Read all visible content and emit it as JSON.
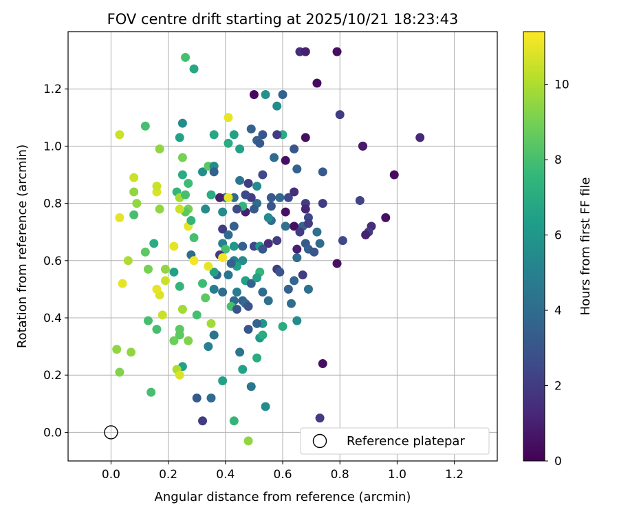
{
  "chart_data": {
    "type": "scatter",
    "title": "FOV centre drift starting at 2025/10/21 18:23:43",
    "xlabel": "Angular distance from reference (arcmin)",
    "ylabel": "Rotation from reference (arcmin)",
    "xlim": [
      -0.15,
      1.35
    ],
    "ylim": [
      -0.1,
      1.4
    ],
    "x_ticks": [
      0.0,
      0.2,
      0.4,
      0.6,
      0.8,
      1.0,
      1.2
    ],
    "y_ticks": [
      0.0,
      0.2,
      0.4,
      0.6,
      0.8,
      1.0,
      1.2
    ],
    "x_tick_labels": [
      "0.0",
      "0.2",
      "0.4",
      "0.6",
      "0.8",
      "1.0",
      "1.2"
    ],
    "y_tick_labels": [
      "0.0",
      "0.2",
      "0.4",
      "0.6",
      "0.8",
      "1.0",
      "1.2"
    ],
    "grid": true,
    "colorbar": {
      "label": "Hours from first FF file",
      "colormap": "viridis",
      "range": [
        0,
        11.4
      ],
      "ticks": [
        0,
        2,
        4,
        6,
        8,
        10
      ],
      "tick_labels": [
        "0",
        "2",
        "4",
        "6",
        "8",
        "10"
      ]
    },
    "reference": {
      "x": 0.0,
      "y": 0.0,
      "label": "Reference platepar"
    },
    "legend": {
      "position": "bottom-right",
      "entries": [
        "Reference platepar"
      ]
    },
    "points": [
      [
        0.66,
        1.33,
        1.5
      ],
      [
        0.68,
        1.33,
        1.0
      ],
      [
        0.79,
        1.33,
        0.5
      ],
      [
        0.72,
        1.22,
        0.3
      ],
      [
        0.5,
        1.18,
        0.3
      ],
      [
        0.6,
        1.18,
        3.5
      ],
      [
        0.54,
        1.18,
        5.8
      ],
      [
        0.8,
        1.11,
        2.0
      ],
      [
        0.58,
        1.14,
        5.5
      ],
      [
        0.49,
        1.06,
        3.5
      ],
      [
        0.6,
        1.04,
        7.0
      ],
      [
        0.58,
        1.04,
        2.0
      ],
      [
        0.53,
        1.04,
        3.0
      ],
      [
        0.51,
        1.02,
        3.5
      ],
      [
        0.52,
        1.01,
        3.2
      ],
      [
        0.68,
        1.03,
        0.5
      ],
      [
        0.88,
        1.0,
        0.3
      ],
      [
        0.88,
        1.0,
        0.8
      ],
      [
        1.08,
        1.03,
        1.3
      ],
      [
        0.64,
        0.99,
        3.0
      ],
      [
        0.61,
        0.95,
        0.5
      ],
      [
        0.57,
        0.96,
        4.0
      ],
      [
        0.65,
        0.92,
        3.5
      ],
      [
        0.74,
        0.91,
        3.2
      ],
      [
        0.53,
        0.9,
        2.5
      ],
      [
        0.99,
        0.9,
        0.3
      ],
      [
        0.87,
        0.81,
        2.3
      ],
      [
        0.68,
        0.8,
        2.0
      ],
      [
        0.74,
        0.8,
        2.0
      ],
      [
        0.68,
        0.78,
        1.2
      ],
      [
        0.62,
        0.82,
        2.5
      ],
      [
        0.64,
        0.84,
        1.5
      ],
      [
        0.61,
        0.77,
        0.5
      ],
      [
        0.69,
        0.75,
        2.5
      ],
      [
        0.67,
        0.72,
        3.5
      ],
      [
        0.64,
        0.72,
        0.5
      ],
      [
        0.66,
        0.7,
        2.0
      ],
      [
        0.69,
        0.73,
        2.0
      ],
      [
        0.91,
        0.72,
        1.5
      ],
      [
        0.9,
        0.7,
        2.0
      ],
      [
        0.89,
        0.69,
        1.0
      ],
      [
        0.96,
        0.75,
        0.5
      ],
      [
        0.81,
        0.67,
        2.5
      ],
      [
        0.68,
        0.66,
        3.2
      ],
      [
        0.73,
        0.66,
        4.0
      ],
      [
        0.69,
        0.64,
        3.5
      ],
      [
        0.71,
        0.63,
        3.0
      ],
      [
        0.65,
        0.64,
        1.0
      ],
      [
        0.65,
        0.61,
        4.0
      ],
      [
        0.79,
        0.59,
        0.5
      ],
      [
        0.58,
        0.67,
        2.0
      ],
      [
        0.55,
        0.66,
        1.5
      ],
      [
        0.5,
        0.65,
        2.5
      ],
      [
        0.52,
        0.65,
        6.0
      ],
      [
        0.53,
        0.64,
        3.0
      ],
      [
        0.56,
        0.74,
        4.0
      ],
      [
        0.55,
        0.75,
        5.5
      ],
      [
        0.56,
        0.79,
        3.0
      ],
      [
        0.56,
        0.82,
        3.2
      ],
      [
        0.51,
        0.8,
        4.0
      ],
      [
        0.5,
        0.78,
        3.2
      ],
      [
        0.49,
        0.82,
        2.0
      ],
      [
        0.51,
        0.86,
        5.5
      ],
      [
        0.48,
        0.87,
        2.0
      ],
      [
        0.47,
        0.83,
        2.5
      ],
      [
        0.45,
        0.88,
        4.5
      ],
      [
        0.43,
        0.82,
        4.0
      ],
      [
        0.4,
        0.82,
        4.5
      ],
      [
        0.38,
        0.82,
        1.0
      ],
      [
        0.39,
        0.77,
        5.5
      ],
      [
        0.47,
        0.77,
        1.0
      ],
      [
        0.46,
        0.79,
        7.5
      ],
      [
        0.44,
        0.78,
        2.5
      ],
      [
        0.39,
        0.71,
        2.0
      ],
      [
        0.43,
        0.72,
        3.5
      ],
      [
        0.41,
        0.69,
        4.0
      ],
      [
        0.39,
        0.66,
        5.0
      ],
      [
        0.43,
        0.65,
        6.0
      ],
      [
        0.46,
        0.65,
        3.5
      ],
      [
        0.4,
        0.64,
        8.0
      ],
      [
        0.38,
        0.62,
        2.0
      ],
      [
        0.43,
        0.6,
        4.8
      ],
      [
        0.46,
        0.6,
        5.5
      ],
      [
        0.44,
        0.58,
        6.5
      ],
      [
        0.42,
        0.59,
        3.5
      ],
      [
        0.41,
        0.55,
        4.5
      ],
      [
        0.37,
        0.55,
        3.5
      ],
      [
        0.36,
        0.5,
        4.8
      ],
      [
        0.39,
        0.49,
        4.0
      ],
      [
        0.44,
        0.49,
        4.8
      ],
      [
        0.43,
        0.46,
        4.0
      ],
      [
        0.42,
        0.44,
        8.0
      ],
      [
        0.44,
        0.43,
        3.0
      ],
      [
        0.46,
        0.46,
        3.5
      ],
      [
        0.47,
        0.45,
        4.0
      ],
      [
        0.48,
        0.44,
        3.0
      ],
      [
        0.47,
        0.53,
        6.5
      ],
      [
        0.49,
        0.52,
        3.5
      ],
      [
        0.52,
        0.56,
        7.5
      ],
      [
        0.51,
        0.54,
        6.5
      ],
      [
        0.53,
        0.49,
        4.0
      ],
      [
        0.58,
        0.57,
        2.0
      ],
      [
        0.59,
        0.56,
        3.0
      ],
      [
        0.62,
        0.5,
        3.5
      ],
      [
        0.63,
        0.45,
        4.0
      ],
      [
        0.67,
        0.55,
        2.0
      ],
      [
        0.69,
        0.5,
        4.2
      ],
      [
        0.65,
        0.39,
        5.5
      ],
      [
        0.6,
        0.37,
        7.0
      ],
      [
        0.53,
        0.38,
        6.0
      ],
      [
        0.51,
        0.38,
        3.5
      ],
      [
        0.48,
        0.36,
        3.0
      ],
      [
        0.52,
        0.33,
        6.0
      ],
      [
        0.53,
        0.34,
        7.0
      ],
      [
        0.45,
        0.28,
        4.5
      ],
      [
        0.46,
        0.22,
        6.5
      ],
      [
        0.49,
        0.16,
        4.5
      ],
      [
        0.51,
        0.26,
        7.0
      ],
      [
        0.39,
        0.18,
        6.5
      ],
      [
        0.35,
        0.12,
        4.0
      ],
      [
        0.3,
        0.12,
        3.2
      ],
      [
        0.32,
        0.04,
        2.0
      ],
      [
        0.43,
        0.04,
        7.5
      ],
      [
        0.54,
        0.09,
        5.5
      ],
      [
        0.48,
        -0.03,
        9.5
      ],
      [
        0.73,
        0.05,
        2.0
      ],
      [
        0.74,
        0.24,
        0.5
      ],
      [
        0.36,
        0.34,
        9.5
      ],
      [
        0.36,
        0.34,
        4.5
      ],
      [
        0.34,
        0.3,
        5.0
      ],
      [
        0.35,
        0.38,
        9.8
      ],
      [
        0.33,
        0.47,
        8.5
      ],
      [
        0.3,
        0.41,
        8.0
      ],
      [
        0.32,
        0.52,
        7.8
      ],
      [
        0.28,
        0.62,
        4.0
      ],
      [
        0.29,
        0.6,
        11.2
      ],
      [
        0.29,
        0.68,
        8.0
      ],
      [
        0.27,
        0.72,
        11.0
      ],
      [
        0.28,
        0.74,
        7.5
      ],
      [
        0.27,
        0.78,
        9.0
      ],
      [
        0.26,
        0.77,
        8.5
      ],
      [
        0.24,
        0.78,
        10.5
      ],
      [
        0.23,
        0.84,
        7.5
      ],
      [
        0.24,
        0.82,
        9.8
      ],
      [
        0.26,
        0.83,
        8.0
      ],
      [
        0.27,
        0.87,
        7.8
      ],
      [
        0.25,
        0.9,
        7.0
      ],
      [
        0.25,
        0.96,
        9.0
      ],
      [
        0.24,
        1.03,
        6.5
      ],
      [
        0.25,
        1.08,
        5.5
      ],
      [
        0.26,
        1.31,
        8.0
      ],
      [
        0.29,
        1.27,
        6.8
      ],
      [
        0.32,
        0.91,
        5.5
      ],
      [
        0.34,
        0.93,
        8.5
      ],
      [
        0.36,
        0.93,
        5.5
      ],
      [
        0.36,
        0.91,
        3.5
      ],
      [
        0.36,
        1.04,
        6.8
      ],
      [
        0.41,
        1.01,
        7.0
      ],
      [
        0.41,
        1.1,
        11.0
      ],
      [
        0.43,
        1.04,
        6.5
      ],
      [
        0.45,
        0.99,
        6.5
      ],
      [
        0.35,
        0.83,
        7.0
      ],
      [
        0.33,
        0.78,
        5.5
      ],
      [
        0.41,
        0.82,
        11.0
      ],
      [
        0.36,
        0.56,
        6.5
      ],
      [
        0.34,
        0.58,
        11.0
      ],
      [
        0.39,
        0.61,
        11.2
      ],
      [
        0.25,
        0.43,
        9.8
      ],
      [
        0.24,
        0.36,
        8.5
      ],
      [
        0.25,
        0.23,
        6.5
      ],
      [
        0.23,
        0.22,
        10.0
      ],
      [
        0.24,
        0.2,
        10.8
      ],
      [
        0.24,
        0.34,
        8.5
      ],
      [
        0.22,
        0.32,
        8.8
      ],
      [
        0.27,
        0.32,
        9.2
      ],
      [
        0.24,
        0.51,
        7.5
      ],
      [
        0.22,
        0.56,
        6.5
      ],
      [
        0.22,
        0.65,
        11.0
      ],
      [
        0.19,
        0.57,
        9.5
      ],
      [
        0.19,
        0.53,
        10.5
      ],
      [
        0.17,
        0.48,
        10.8
      ],
      [
        0.18,
        0.41,
        10.5
      ],
      [
        0.16,
        0.5,
        11.0
      ],
      [
        0.16,
        0.36,
        8.0
      ],
      [
        0.14,
        0.14,
        8.0
      ],
      [
        0.13,
        0.39,
        8.0
      ],
      [
        0.13,
        0.57,
        9.0
      ],
      [
        0.12,
        0.63,
        8.5
      ],
      [
        0.15,
        0.66,
        7.0
      ],
      [
        0.16,
        0.84,
        10.8
      ],
      [
        0.16,
        0.86,
        10.5
      ],
      [
        0.17,
        0.78,
        9.5
      ],
      [
        0.17,
        0.99,
        9.5
      ],
      [
        0.12,
        1.07,
        8.0
      ],
      [
        0.08,
        0.89,
        10.5
      ],
      [
        0.08,
        0.84,
        9.5
      ],
      [
        0.09,
        0.8,
        9.5
      ],
      [
        0.08,
        0.76,
        8.0
      ],
      [
        0.06,
        0.6,
        10.0
      ],
      [
        0.03,
        0.75,
        11.0
      ],
      [
        0.04,
        0.52,
        11.0
      ],
      [
        0.03,
        1.04,
        10.5
      ],
      [
        0.02,
        0.29,
        9.5
      ],
      [
        0.07,
        0.28,
        9.5
      ],
      [
        0.03,
        0.21,
        9.2
      ],
      [
        0.59,
        0.82,
        3.8
      ],
      [
        0.61,
        0.72,
        4.2
      ],
      [
        0.72,
        0.7,
        4.2
      ],
      [
        0.64,
        0.53,
        3.8
      ],
      [
        0.55,
        0.46,
        4.2
      ]
    ]
  }
}
